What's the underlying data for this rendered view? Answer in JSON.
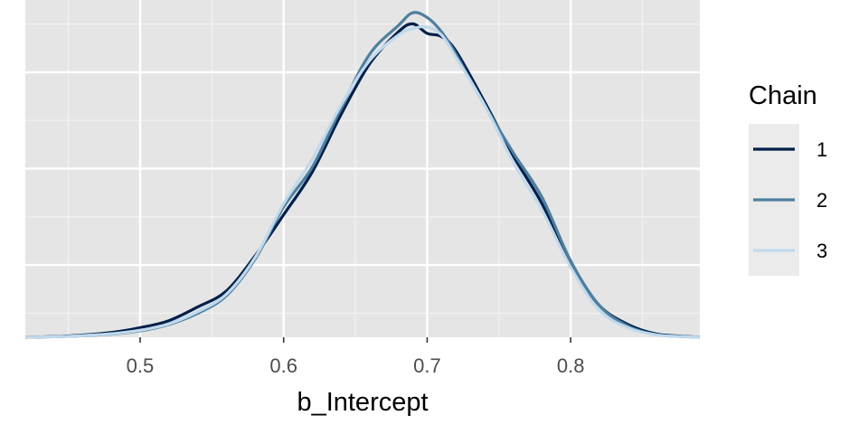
{
  "chart_data": {
    "type": "line",
    "title": "",
    "xlabel": "b_Intercept",
    "ylabel": "",
    "xlim": [
      0.42,
      0.89
    ],
    "ylim": [
      0,
      1.06
    ],
    "x_ticks": [
      0.5,
      0.6,
      0.7,
      0.8
    ],
    "x_tick_labels": [
      "0.5",
      "0.6",
      "0.7",
      "0.8"
    ],
    "grid": true,
    "y_ticks_shown": false,
    "legend": {
      "title": "Chain",
      "position": "right"
    },
    "series": [
      {
        "name": "1",
        "color": "#011f4b",
        "x": [
          0.42,
          0.45,
          0.48,
          0.5,
          0.52,
          0.54,
          0.56,
          0.58,
          0.6,
          0.62,
          0.64,
          0.66,
          0.68,
          0.69,
          0.7,
          0.71,
          0.72,
          0.74,
          0.76,
          0.78,
          0.8,
          0.82,
          0.84,
          0.86,
          0.88,
          0.89
        ],
        "y": [
          0.0,
          0.004,
          0.015,
          0.03,
          0.052,
          0.095,
          0.145,
          0.255,
          0.385,
          0.52,
          0.7,
          0.86,
          0.96,
          0.985,
          0.955,
          0.945,
          0.9,
          0.74,
          0.57,
          0.42,
          0.23,
          0.1,
          0.04,
          0.01,
          0.003,
          0.0
        ]
      },
      {
        "name": "2",
        "color": "#4f7f9f",
        "x": [
          0.42,
          0.45,
          0.48,
          0.5,
          0.52,
          0.54,
          0.56,
          0.58,
          0.6,
          0.62,
          0.64,
          0.66,
          0.68,
          0.69,
          0.7,
          0.71,
          0.72,
          0.74,
          0.76,
          0.78,
          0.8,
          0.82,
          0.84,
          0.86,
          0.88,
          0.89
        ],
        "y": [
          0.0,
          0.003,
          0.01,
          0.02,
          0.04,
          0.075,
          0.13,
          0.245,
          0.41,
          0.535,
          0.72,
          0.89,
          0.98,
          1.02,
          1.005,
          0.96,
          0.89,
          0.73,
          0.58,
          0.44,
          0.24,
          0.1,
          0.035,
          0.008,
          0.002,
          0.0
        ]
      },
      {
        "name": "3",
        "color": "#c1d9ec",
        "x": [
          0.42,
          0.45,
          0.48,
          0.5,
          0.52,
          0.54,
          0.56,
          0.58,
          0.6,
          0.62,
          0.64,
          0.66,
          0.68,
          0.69,
          0.7,
          0.71,
          0.72,
          0.74,
          0.76,
          0.78,
          0.8,
          0.82,
          0.84,
          0.86,
          0.88,
          0.89
        ],
        "y": [
          0.0,
          0.003,
          0.011,
          0.022,
          0.042,
          0.08,
          0.135,
          0.25,
          0.42,
          0.56,
          0.73,
          0.87,
          0.95,
          0.97,
          0.975,
          0.95,
          0.88,
          0.73,
          0.55,
          0.4,
          0.22,
          0.085,
          0.03,
          0.007,
          0.002,
          0.0
        ]
      }
    ]
  }
}
